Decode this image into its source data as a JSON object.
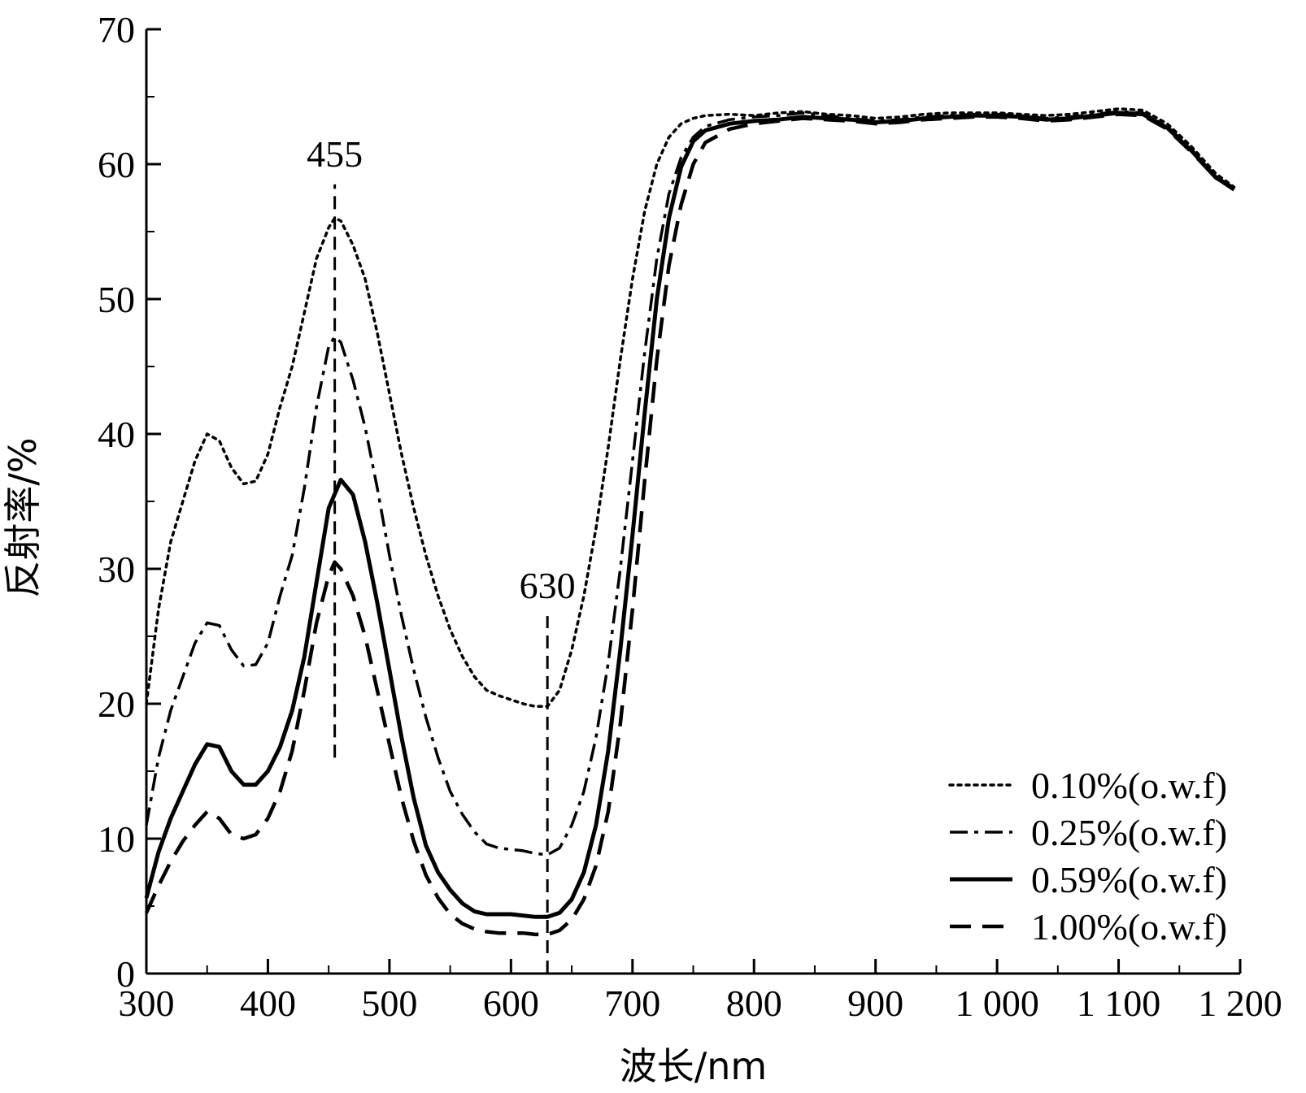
{
  "chart_data": {
    "type": "line",
    "xlabel": "波长/nm",
    "ylabel": "反射率/%",
    "xlim": [
      300,
      1200
    ],
    "ylim": [
      0,
      70
    ],
    "x_ticks": [
      {
        "value": 300,
        "label": "300"
      },
      {
        "value": 400,
        "label": "400"
      },
      {
        "value": 500,
        "label": "500"
      },
      {
        "value": 600,
        "label": "600"
      },
      {
        "value": 700,
        "label": "700"
      },
      {
        "value": 800,
        "label": "800"
      },
      {
        "value": 900,
        "label": "900"
      },
      {
        "value": 1000,
        "label": "1 000"
      },
      {
        "value": 1100,
        "label": "1 100"
      },
      {
        "value": 1200,
        "label": "1 200"
      }
    ],
    "y_ticks": [
      {
        "value": 0,
        "label": "0"
      },
      {
        "value": 10,
        "label": "10"
      },
      {
        "value": 20,
        "label": "20"
      },
      {
        "value": 30,
        "label": "30"
      },
      {
        "value": 40,
        "label": "40"
      },
      {
        "value": 50,
        "label": "50"
      },
      {
        "value": 60,
        "label": "60"
      },
      {
        "value": 70,
        "label": "70"
      }
    ],
    "grid": false,
    "legend_position": "bottom-right",
    "annotations": [
      {
        "label": "455",
        "x": 455,
        "y_from": 16,
        "y_to": 58.5
      },
      {
        "label": "630",
        "x": 630,
        "y_from": 0,
        "y_to": 26.5
      }
    ],
    "series": [
      {
        "name": "0.10%(o.w.f)",
        "style": "dotted",
        "color": "#000000",
        "points": [
          [
            300,
            20
          ],
          [
            310,
            27
          ],
          [
            320,
            32
          ],
          [
            330,
            35
          ],
          [
            340,
            38
          ],
          [
            350,
            40
          ],
          [
            360,
            39.5
          ],
          [
            370,
            37.5
          ],
          [
            380,
            36.3
          ],
          [
            390,
            36.5
          ],
          [
            400,
            38.5
          ],
          [
            410,
            42
          ],
          [
            420,
            45
          ],
          [
            430,
            49
          ],
          [
            440,
            53
          ],
          [
            450,
            55.3
          ],
          [
            455,
            56
          ],
          [
            460,
            55.8
          ],
          [
            470,
            54
          ],
          [
            480,
            51.5
          ],
          [
            490,
            47.5
          ],
          [
            500,
            43
          ],
          [
            510,
            38.5
          ],
          [
            520,
            34.5
          ],
          [
            530,
            31
          ],
          [
            540,
            28
          ],
          [
            550,
            25.5
          ],
          [
            560,
            23.5
          ],
          [
            570,
            22
          ],
          [
            580,
            21
          ],
          [
            590,
            20.6
          ],
          [
            600,
            20.3
          ],
          [
            610,
            20
          ],
          [
            620,
            19.8
          ],
          [
            630,
            19.8
          ],
          [
            640,
            21
          ],
          [
            650,
            24
          ],
          [
            660,
            28
          ],
          [
            670,
            33
          ],
          [
            680,
            39
          ],
          [
            690,
            45.5
          ],
          [
            700,
            51.5
          ],
          [
            710,
            56.5
          ],
          [
            720,
            60
          ],
          [
            730,
            62
          ],
          [
            740,
            63
          ],
          [
            750,
            63.4
          ],
          [
            760,
            63.6
          ],
          [
            780,
            63.7
          ],
          [
            800,
            63.6
          ],
          [
            820,
            63.8
          ],
          [
            840,
            63.9
          ],
          [
            860,
            63.7
          ],
          [
            880,
            63.6
          ],
          [
            900,
            63.4
          ],
          [
            920,
            63.5
          ],
          [
            940,
            63.7
          ],
          [
            960,
            63.8
          ],
          [
            980,
            63.8
          ],
          [
            1000,
            63.8
          ],
          [
            1020,
            63.7
          ],
          [
            1040,
            63.6
          ],
          [
            1060,
            63.7
          ],
          [
            1080,
            63.9
          ],
          [
            1100,
            64.1
          ],
          [
            1120,
            64
          ],
          [
            1140,
            63
          ],
          [
            1160,
            61.3
          ],
          [
            1180,
            59.3
          ],
          [
            1195,
            58.3
          ]
        ]
      },
      {
        "name": "0.25%(o.w.f)",
        "style": "dash-dot",
        "color": "#000000",
        "points": [
          [
            300,
            11
          ],
          [
            310,
            16
          ],
          [
            320,
            19.5
          ],
          [
            330,
            22
          ],
          [
            340,
            24.5
          ],
          [
            350,
            26
          ],
          [
            360,
            25.8
          ],
          [
            370,
            24
          ],
          [
            380,
            22.8
          ],
          [
            390,
            22.9
          ],
          [
            400,
            24.5
          ],
          [
            410,
            28
          ],
          [
            420,
            31
          ],
          [
            430,
            36
          ],
          [
            440,
            42
          ],
          [
            450,
            46.5
          ],
          [
            455,
            47.2
          ],
          [
            460,
            46.8
          ],
          [
            470,
            44
          ],
          [
            480,
            40.5
          ],
          [
            490,
            36
          ],
          [
            500,
            31
          ],
          [
            510,
            26.5
          ],
          [
            520,
            22.5
          ],
          [
            530,
            19
          ],
          [
            540,
            16
          ],
          [
            550,
            13.5
          ],
          [
            560,
            11.8
          ],
          [
            570,
            10.5
          ],
          [
            580,
            9.6
          ],
          [
            590,
            9.3
          ],
          [
            600,
            9.2
          ],
          [
            610,
            9.1
          ],
          [
            620,
            8.9
          ],
          [
            630,
            8.8
          ],
          [
            640,
            9.3
          ],
          [
            650,
            11
          ],
          [
            660,
            13.5
          ],
          [
            670,
            17.5
          ],
          [
            680,
            23
          ],
          [
            690,
            30
          ],
          [
            700,
            38
          ],
          [
            710,
            46
          ],
          [
            720,
            53
          ],
          [
            730,
            57.8
          ],
          [
            740,
            60.5
          ],
          [
            750,
            62
          ],
          [
            760,
            62.8
          ],
          [
            780,
            63.3
          ],
          [
            800,
            63.5
          ],
          [
            820,
            63.6
          ],
          [
            840,
            63.8
          ],
          [
            860,
            63.6
          ],
          [
            880,
            63.4
          ],
          [
            900,
            63.2
          ],
          [
            920,
            63.3
          ],
          [
            940,
            63.5
          ],
          [
            960,
            63.6
          ],
          [
            980,
            63.7
          ],
          [
            1000,
            63.7
          ],
          [
            1020,
            63.6
          ],
          [
            1040,
            63.4
          ],
          [
            1060,
            63.5
          ],
          [
            1080,
            63.7
          ],
          [
            1100,
            63.9
          ],
          [
            1120,
            63.8
          ],
          [
            1140,
            62.8
          ],
          [
            1160,
            61.1
          ],
          [
            1180,
            59.1
          ],
          [
            1195,
            58.2
          ]
        ]
      },
      {
        "name": "0.59%(o.w.f)",
        "style": "solid",
        "color": "#000000",
        "points": [
          [
            300,
            5.6
          ],
          [
            310,
            9
          ],
          [
            320,
            11.5
          ],
          [
            330,
            13.5
          ],
          [
            340,
            15.5
          ],
          [
            350,
            17
          ],
          [
            360,
            16.8
          ],
          [
            370,
            15
          ],
          [
            380,
            14
          ],
          [
            390,
            14
          ],
          [
            400,
            15
          ],
          [
            410,
            16.8
          ],
          [
            420,
            19.5
          ],
          [
            430,
            23.5
          ],
          [
            440,
            29
          ],
          [
            450,
            34.5
          ],
          [
            460,
            36.6
          ],
          [
            470,
            35.5
          ],
          [
            480,
            32
          ],
          [
            490,
            27.5
          ],
          [
            500,
            22.5
          ],
          [
            510,
            17.5
          ],
          [
            520,
            13
          ],
          [
            530,
            9.5
          ],
          [
            540,
            7.5
          ],
          [
            550,
            6.2
          ],
          [
            560,
            5.2
          ],
          [
            570,
            4.6
          ],
          [
            580,
            4.4
          ],
          [
            590,
            4.4
          ],
          [
            600,
            4.4
          ],
          [
            610,
            4.3
          ],
          [
            620,
            4.2
          ],
          [
            630,
            4.2
          ],
          [
            640,
            4.5
          ],
          [
            650,
            5.5
          ],
          [
            660,
            7.5
          ],
          [
            670,
            11
          ],
          [
            680,
            16.5
          ],
          [
            690,
            24
          ],
          [
            700,
            32.5
          ],
          [
            710,
            41.5
          ],
          [
            720,
            50
          ],
          [
            730,
            56
          ],
          [
            740,
            59.8
          ],
          [
            750,
            61.7
          ],
          [
            760,
            62.5
          ],
          [
            780,
            63
          ],
          [
            800,
            63.2
          ],
          [
            820,
            63.3
          ],
          [
            840,
            63.5
          ],
          [
            860,
            63.4
          ],
          [
            880,
            63.3
          ],
          [
            900,
            63.1
          ],
          [
            920,
            63.2
          ],
          [
            940,
            63.4
          ],
          [
            960,
            63.5
          ],
          [
            980,
            63.6
          ],
          [
            1000,
            63.6
          ],
          [
            1020,
            63.5
          ],
          [
            1040,
            63.3
          ],
          [
            1060,
            63.4
          ],
          [
            1080,
            63.6
          ],
          [
            1100,
            63.8
          ],
          [
            1120,
            63.7
          ],
          [
            1140,
            62.7
          ],
          [
            1160,
            61
          ],
          [
            1180,
            59
          ],
          [
            1195,
            58.2
          ]
        ]
      },
      {
        "name": "1.00%(o.w.f)",
        "style": "dashed",
        "color": "#000000",
        "points": [
          [
            300,
            4.5
          ],
          [
            310,
            6.5
          ],
          [
            320,
            8.3
          ],
          [
            330,
            9.8
          ],
          [
            340,
            11
          ],
          [
            350,
            12
          ],
          [
            360,
            11.5
          ],
          [
            370,
            10.3
          ],
          [
            380,
            10
          ],
          [
            390,
            10.3
          ],
          [
            400,
            11.5
          ],
          [
            410,
            13.5
          ],
          [
            420,
            16.5
          ],
          [
            430,
            21
          ],
          [
            440,
            26
          ],
          [
            450,
            29.5
          ],
          [
            455,
            30.5
          ],
          [
            460,
            30
          ],
          [
            470,
            28
          ],
          [
            480,
            25
          ],
          [
            490,
            21
          ],
          [
            500,
            17
          ],
          [
            510,
            13
          ],
          [
            520,
            9.8
          ],
          [
            530,
            7.3
          ],
          [
            540,
            5.6
          ],
          [
            550,
            4.4
          ],
          [
            560,
            3.7
          ],
          [
            570,
            3.3
          ],
          [
            580,
            3.1
          ],
          [
            590,
            3.0
          ],
          [
            600,
            3.0
          ],
          [
            610,
            3.0
          ],
          [
            620,
            2.9
          ],
          [
            630,
            2.9
          ],
          [
            640,
            3.2
          ],
          [
            650,
            4
          ],
          [
            660,
            5.5
          ],
          [
            670,
            8
          ],
          [
            680,
            12
          ],
          [
            690,
            18.5
          ],
          [
            700,
            27
          ],
          [
            710,
            36.5
          ],
          [
            720,
            45.5
          ],
          [
            730,
            52.5
          ],
          [
            740,
            57
          ],
          [
            750,
            60
          ],
          [
            760,
            61.6
          ],
          [
            780,
            62.6
          ],
          [
            800,
            63
          ],
          [
            820,
            63.2
          ],
          [
            840,
            63.4
          ],
          [
            860,
            63.3
          ],
          [
            880,
            63.2
          ],
          [
            900,
            63
          ],
          [
            920,
            63.1
          ],
          [
            940,
            63.3
          ],
          [
            960,
            63.4
          ],
          [
            980,
            63.5
          ],
          [
            1000,
            63.5
          ],
          [
            1020,
            63.4
          ],
          [
            1040,
            63.2
          ],
          [
            1060,
            63.3
          ],
          [
            1080,
            63.5
          ],
          [
            1100,
            63.7
          ],
          [
            1120,
            63.6
          ],
          [
            1140,
            62.6
          ],
          [
            1160,
            60.9
          ],
          [
            1180,
            59
          ],
          [
            1195,
            58.1
          ]
        ]
      }
    ]
  }
}
